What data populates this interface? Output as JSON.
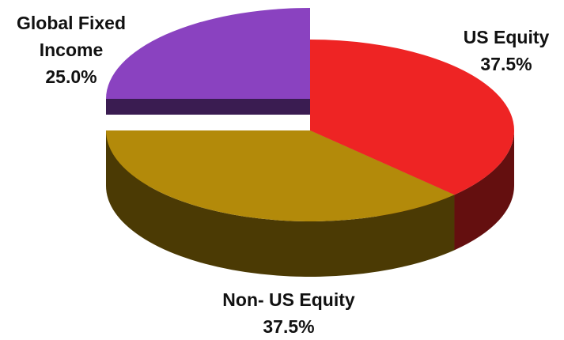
{
  "chart_data": {
    "type": "pie",
    "categories": [
      "US Equity",
      "Non- US Equity",
      "Global Fixed Income"
    ],
    "values": [
      37.5,
      37.5,
      25
    ],
    "value_labels": [
      "37.5%",
      "37.5%",
      "25.0%"
    ],
    "colors": [
      "#ee2424",
      "#b38a0a",
      "#8a42c0"
    ]
  }
}
